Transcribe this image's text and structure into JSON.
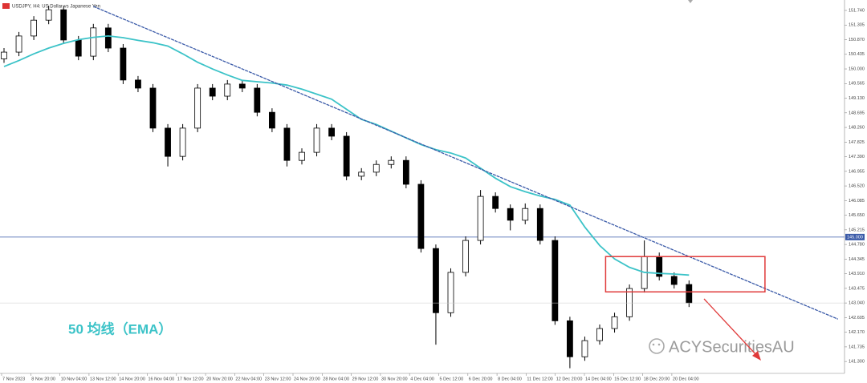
{
  "chart_data": {
    "type": "candlestick",
    "title": "USDJPY, H4: US Dollar vs Japanese Yen",
    "annotation": "50 均线（EMA）",
    "watermark": "ACYSecuritiesAU",
    "xlabels": [
      "7 Nov 2023",
      "8 Nov 20:00",
      "10 Nov 04:00",
      "13 Nov 12:00",
      "14 Nov 20:00",
      "16 Nov 04:00",
      "17 Nov 12:00",
      "20 Nov 20:00",
      "22 Nov 04:00",
      "23 Nov 12:00",
      "24 Nov 20:00",
      "28 Nov 04:00",
      "29 Nov 12:00",
      "30 Nov 20:00",
      "4 Dec 04:00",
      "5 Dec 12:00",
      "6 Dec 20:00",
      "8 Dec 04:00",
      "11 Dec 12:00",
      "12 Dec 20:00",
      "14 Dec 04:00",
      "15 Dec 12:00",
      "18 Dec 20:00",
      "20 Dec 04:00"
    ],
    "open": [
      150.3,
      150.5,
      150.98,
      151.45,
      151.76,
      150.86,
      150.38,
      151.22,
      150.62,
      149.67,
      149.43,
      148.24,
      147.4,
      148.24,
      149.43,
      149.19,
      149.55,
      149.43,
      148.71,
      148.24,
      147.28,
      147.52,
      148.24,
      148.0,
      146.81,
      146.93,
      147.16,
      147.28,
      146.57,
      144.66,
      142.75,
      143.95,
      144.9,
      146.21,
      145.85,
      145.5,
      145.85,
      144.9,
      142.51,
      141.44,
      141.92,
      142.28,
      142.63,
      143.47,
      144.42,
      143.83,
      143.59
    ],
    "high": [
      150.62,
      151.1,
      151.57,
      151.88,
      151.88,
      150.98,
      151.34,
      151.34,
      150.74,
      149.79,
      149.55,
      148.36,
      148.36,
      149.55,
      149.55,
      149.67,
      149.67,
      149.55,
      148.83,
      148.36,
      147.64,
      148.36,
      148.36,
      148.12,
      147.05,
      147.28,
      147.4,
      147.4,
      146.69,
      144.78,
      144.07,
      145.02,
      146.4,
      146.33,
      145.97,
      146.0,
      145.97,
      145.02,
      142.63,
      142.04,
      142.4,
      142.75,
      143.59,
      144.9,
      144.54,
      143.95,
      143.71
    ],
    "low": [
      150.18,
      150.38,
      150.86,
      151.33,
      150.74,
      150.26,
      150.26,
      150.5,
      149.55,
      149.31,
      148.12,
      147.1,
      147.28,
      148.12,
      149.07,
      149.07,
      149.31,
      148.59,
      148.12,
      147.1,
      147.16,
      147.4,
      147.88,
      146.69,
      146.69,
      146.81,
      147.04,
      146.45,
      144.54,
      141.8,
      142.63,
      143.83,
      144.78,
      145.73,
      145.2,
      145.38,
      144.78,
      142.39,
      141.1,
      141.32,
      141.8,
      142.16,
      142.51,
      143.35,
      143.71,
      143.47,
      142.92
    ],
    "close": [
      150.5,
      150.98,
      151.45,
      151.76,
      150.86,
      150.38,
      151.22,
      150.62,
      149.67,
      149.43,
      148.24,
      147.4,
      148.24,
      149.43,
      149.19,
      149.55,
      149.43,
      148.71,
      148.24,
      147.28,
      147.52,
      148.24,
      148.0,
      146.81,
      146.93,
      147.16,
      147.28,
      146.57,
      144.66,
      142.75,
      143.95,
      144.9,
      146.21,
      145.85,
      145.5,
      145.85,
      144.9,
      142.51,
      141.44,
      141.92,
      142.28,
      142.63,
      143.47,
      144.42,
      143.83,
      143.59,
      143.04
    ],
    "series": [
      {
        "name": "EMA 50",
        "color": "#3cc3c8",
        "values": [
          150.07,
          150.25,
          150.45,
          150.62,
          150.76,
          150.87,
          150.94,
          150.98,
          150.93,
          150.85,
          150.78,
          150.68,
          150.45,
          150.2,
          150.0,
          149.82,
          149.66,
          149.62,
          149.58,
          149.52,
          149.4,
          149.25,
          149.1,
          148.8,
          148.5,
          148.35,
          148.15,
          147.95,
          147.75,
          147.6,
          147.5,
          147.35,
          147.05,
          146.75,
          146.5,
          146.35,
          146.22,
          146.12,
          145.95,
          145.3,
          144.75,
          144.35,
          144.1,
          143.95,
          143.92,
          143.9,
          143.87
        ]
      }
    ],
    "trendline": {
      "x": [
        6,
        56
      ],
      "values": [
        151.86,
        142.56
      ],
      "color": "#3a5aa8"
    },
    "box": {
      "x": [
        40.4,
        51.1
      ],
      "values": [
        144.42,
        143.37
      ],
      "color": "#e03a3a"
    },
    "level": {
      "value": 145.0,
      "label": "145.000",
      "color": "#3a5aa8"
    },
    "ylim": [
      140.97,
      152.05
    ],
    "yticks": [
      {
        "value": 151.74,
        "label": "151.740"
      },
      151.305,
      {
        "value": 150.87,
        "label": "150.870"
      },
      150.435,
      {
        "value": 150.0,
        "label": "150.000"
      },
      149.565,
      {
        "value": 149.13,
        "label": "149.130"
      },
      148.695,
      {
        "value": 148.26,
        "label": "148.260"
      },
      147.825,
      {
        "value": 147.39,
        "label": "147.390"
      },
      146.955,
      {
        "value": 146.52,
        "label": "146.520"
      },
      146.085,
      {
        "value": 145.65,
        "label": "145.650"
      },
      145.215,
      {
        "value": 144.78,
        "label": "144.780"
      },
      144.345,
      {
        "value": 143.91,
        "label": "143.910"
      },
      143.475,
      {
        "value": 143.04,
        "label": "143.040"
      },
      142.605,
      {
        "value": 142.17,
        "label": "142.170"
      },
      141.735,
      {
        "value": 141.3,
        "label": "141.300"
      }
    ]
  }
}
